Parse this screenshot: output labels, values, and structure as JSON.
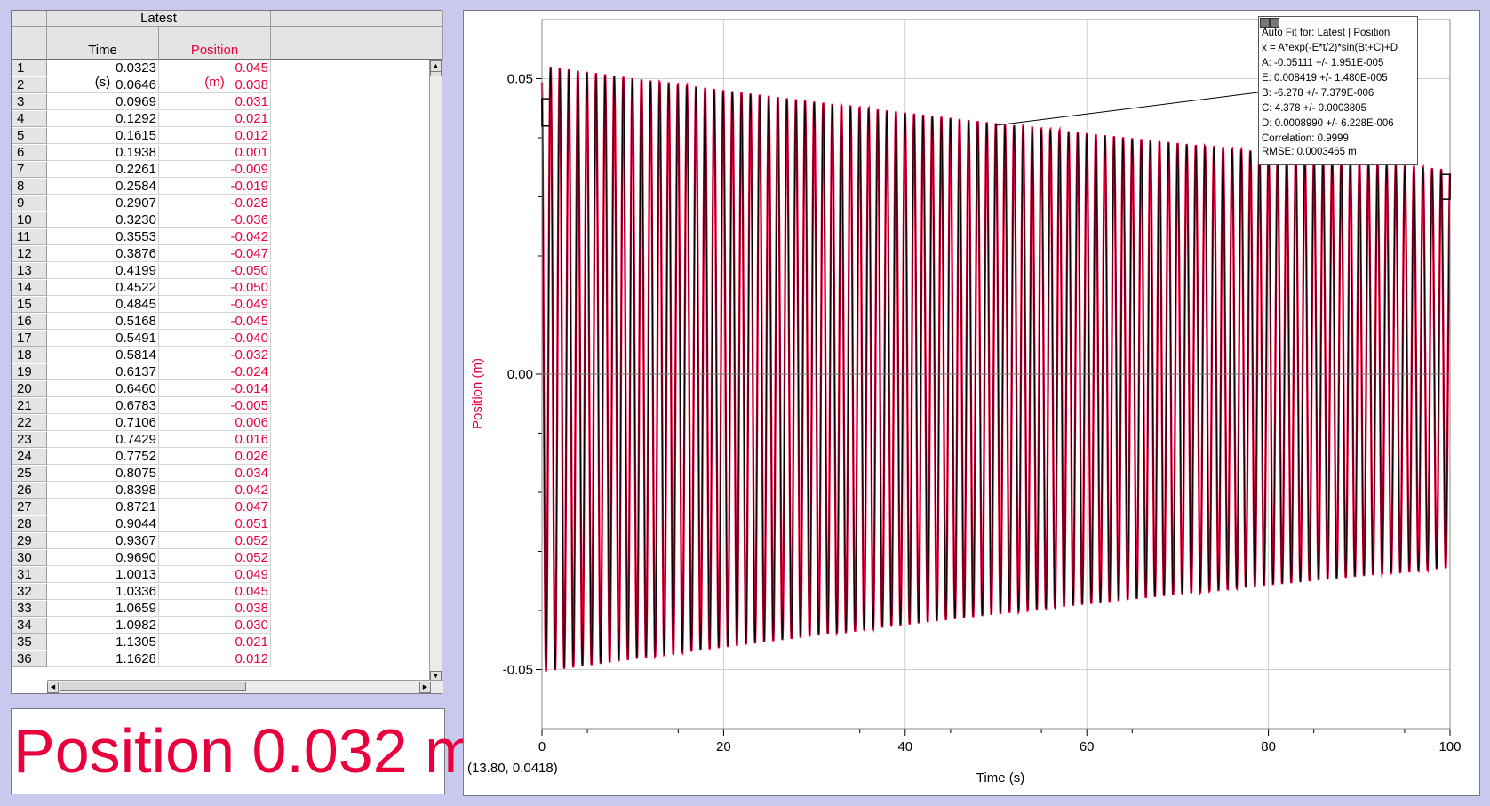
{
  "table": {
    "group_header": "Latest",
    "columns": [
      {
        "name": "Time",
        "unit": "(s)"
      },
      {
        "name": "Position",
        "unit": "(m)"
      }
    ],
    "rows": [
      [
        "1",
        "0.0323",
        "0.045"
      ],
      [
        "2",
        "0.0646",
        "0.038"
      ],
      [
        "3",
        "0.0969",
        "0.031"
      ],
      [
        "4",
        "0.1292",
        "0.021"
      ],
      [
        "5",
        "0.1615",
        "0.012"
      ],
      [
        "6",
        "0.1938",
        "0.001"
      ],
      [
        "7",
        "0.2261",
        "-0.009"
      ],
      [
        "8",
        "0.2584",
        "-0.019"
      ],
      [
        "9",
        "0.2907",
        "-0.028"
      ],
      [
        "10",
        "0.3230",
        "-0.036"
      ],
      [
        "11",
        "0.3553",
        "-0.042"
      ],
      [
        "12",
        "0.3876",
        "-0.047"
      ],
      [
        "13",
        "0.4199",
        "-0.050"
      ],
      [
        "14",
        "0.4522",
        "-0.050"
      ],
      [
        "15",
        "0.4845",
        "-0.049"
      ],
      [
        "16",
        "0.5168",
        "-0.045"
      ],
      [
        "17",
        "0.5491",
        "-0.040"
      ],
      [
        "18",
        "0.5814",
        "-0.032"
      ],
      [
        "19",
        "0.6137",
        "-0.024"
      ],
      [
        "20",
        "0.6460",
        "-0.014"
      ],
      [
        "21",
        "0.6783",
        "-0.005"
      ],
      [
        "22",
        "0.7106",
        "0.006"
      ],
      [
        "23",
        "0.7429",
        "0.016"
      ],
      [
        "24",
        "0.7752",
        "0.026"
      ],
      [
        "25",
        "0.8075",
        "0.034"
      ],
      [
        "26",
        "0.8398",
        "0.042"
      ],
      [
        "27",
        "0.8721",
        "0.047"
      ],
      [
        "28",
        "0.9044",
        "0.051"
      ],
      [
        "29",
        "0.9367",
        "0.052"
      ],
      [
        "30",
        "0.9690",
        "0.052"
      ],
      [
        "31",
        "1.0013",
        "0.049"
      ],
      [
        "32",
        "1.0336",
        "0.045"
      ],
      [
        "33",
        "1.0659",
        "0.038"
      ],
      [
        "34",
        "1.0982",
        "0.030"
      ],
      [
        "35",
        "1.1305",
        "0.021"
      ],
      [
        "36",
        "1.1628",
        "0.012"
      ]
    ]
  },
  "meter": {
    "text": "Position 0.032 m",
    "color": "#e8003c"
  },
  "graph": {
    "xlabel": "Time (s)",
    "ylabel": "Position (m)",
    "cursor_readout": "(13.80, 0.0418)",
    "fit_box": {
      "title": "Auto Fit for: Latest | Position",
      "equation": "x = A*exp(-E*t/2)*sin(Bt+C)+D",
      "params": [
        "A: -0.05111 +/- 1.951E-005",
        "E: 0.008419 +/- 1.480E-005",
        "B: -6.278 +/- 7.379E-006",
        "C: 4.378 +/- 0.0003805",
        "D: 0.0008990 +/- 6.228E-006"
      ],
      "correlation": "Correlation: 0.9999",
      "rmse": "RMSE: 0.0003465 m"
    }
  },
  "chart_data": {
    "type": "line",
    "xlabel": "Time (s)",
    "ylabel": "Position (m)",
    "xlim": [
      0,
      100
    ],
    "ylim": [
      -0.06,
      0.06
    ],
    "x_ticks": [
      0,
      20,
      40,
      60,
      80,
      100
    ],
    "x_tick_labels": [
      "0",
      "20",
      "40",
      "60",
      "80",
      "100"
    ],
    "y_ticks": [
      -0.05,
      0,
      0.05
    ],
    "y_tick_labels": [
      "-0.05",
      "0.00",
      "0.05"
    ],
    "grid": true,
    "series": [
      {
        "name": "Position",
        "color": "#e8003c",
        "kind": "data"
      },
      {
        "name": "Auto Fit",
        "color": "#000000",
        "kind": "fit"
      }
    ],
    "fit_params": {
      "A": -0.05111,
      "E": 0.008419,
      "B": -6.278,
      "C": 4.378,
      "D": 0.000899
    },
    "fit_range": [
      0,
      100
    ]
  }
}
